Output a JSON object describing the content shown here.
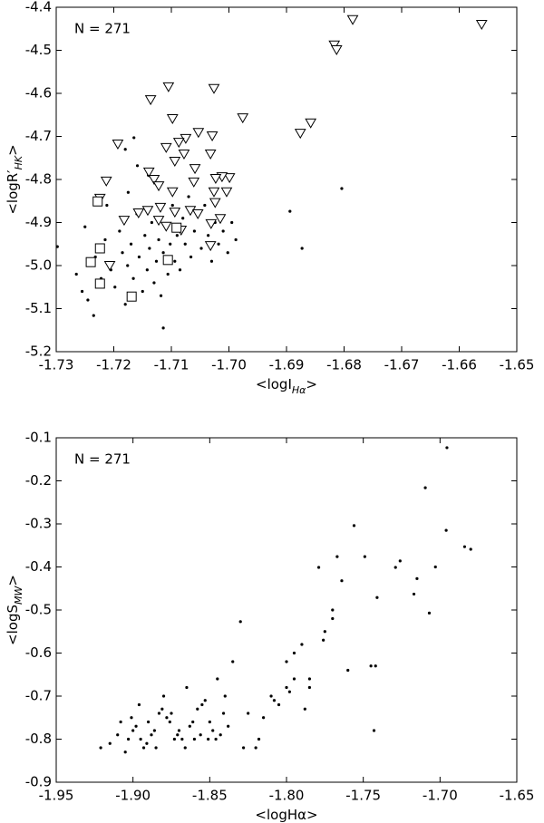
{
  "chart_data": [
    {
      "type": "scatter",
      "annotation": "N = 271",
      "xlabel": {
        "main": "<logI",
        "sub": "Hα",
        "end": ">"
      },
      "ylabel": {
        "main": "<logR′",
        "sub": "HK",
        "end": ">"
      },
      "xlim": [
        -1.73,
        -1.65
      ],
      "ylim": [
        -5.2,
        -4.4
      ],
      "xticks": [
        -1.73,
        -1.72,
        -1.71,
        {
          "value": -1.7,
          "label": "-1.70"
        },
        -1.69,
        -1.68,
        -1.67,
        -1.66,
        -1.65
      ],
      "yticks": [
        -5.2,
        -5.1,
        {
          "value": -5.0,
          "label": "-5.0"
        },
        -4.9,
        -4.8,
        -4.7,
        -4.6,
        -4.5,
        -4.4
      ],
      "series": [
        {
          "marker": "dot",
          "color": "#000000",
          "x": [
            -1.7298,
            -1.7235,
            -1.7114,
            -1.6804,
            -1.6894,
            -1.6873,
            -1.7165,
            -1.7159,
            -1.7265,
            -1.7255,
            -1.7245,
            -1.7232,
            -1.7222,
            -1.7215,
            -1.7205,
            -1.7198,
            -1.719,
            -1.7185,
            -1.718,
            -1.7176,
            -1.717,
            -1.7166,
            -1.716,
            -1.7156,
            -1.715,
            -1.7146,
            -1.7142,
            -1.7138,
            -1.7134,
            -1.713,
            -1.7126,
            -1.7122,
            -1.7118,
            -1.7114,
            -1.711,
            -1.7106,
            -1.7102,
            -1.7098,
            -1.7094,
            -1.709,
            -1.7085,
            -1.708,
            -1.7076,
            -1.707,
            -1.7066,
            -1.706,
            -1.7054,
            -1.7048,
            -1.7042,
            -1.7036,
            -1.703,
            -1.7024,
            -1.7018,
            -1.701,
            -1.7002,
            -1.6995,
            -1.6988,
            -1.7175,
            -1.714,
            -1.712,
            -1.718,
            -1.7212,
            -1.725
          ],
          "values": [
            -4.956,
            -5.116,
            -5.145,
            -4.821,
            -4.874,
            -4.96,
            -4.703,
            -4.768,
            -5.02,
            -5.06,
            -5.08,
            -4.98,
            -5.03,
            -4.94,
            -5.01,
            -5.05,
            -4.92,
            -4.97,
            -5.09,
            -5.0,
            -4.95,
            -5.03,
            -4.88,
            -4.98,
            -5.06,
            -4.93,
            -5.01,
            -4.96,
            -4.9,
            -5.04,
            -4.99,
            -4.94,
            -5.07,
            -4.97,
            -4.91,
            -5.02,
            -4.95,
            -4.86,
            -4.99,
            -4.93,
            -5.01,
            -4.89,
            -4.95,
            -4.84,
            -4.98,
            -4.92,
            -4.88,
            -4.96,
            -4.86,
            -4.93,
            -4.99,
            -4.9,
            -4.95,
            -4.92,
            -4.97,
            -4.9,
            -4.94,
            -4.83,
            -4.79,
            -4.81,
            -4.73,
            -4.86,
            -4.91
          ]
        },
        {
          "marker": "triangle",
          "color": "#000000",
          "x": [
            -1.6785,
            -1.6561,
            -1.6817,
            -1.6813,
            -1.7026,
            -1.7105,
            -1.7136,
            -1.6976,
            -1.6858,
            -1.6876,
            -1.7098,
            -1.7193,
            -1.7053,
            -1.7075,
            -1.7087,
            -1.7029,
            -1.7109,
            -1.7032,
            -1.7078,
            -1.7094,
            -1.7139,
            -1.713,
            -1.7059,
            -1.6999,
            -1.7012,
            -1.7023,
            -1.7213,
            -1.7122,
            -1.7061,
            -1.7098,
            -1.7004,
            -1.7026,
            -1.7224,
            -1.7024,
            -1.7157,
            -1.7141,
            -1.7119,
            -1.7094,
            -1.7067,
            -1.7054,
            -1.7182,
            -1.7122,
            -1.7015,
            -1.7031,
            -1.7083,
            -1.7032,
            -1.7207,
            -1.7109
          ],
          "values": [
            -4.429,
            -4.44,
            -4.488,
            -4.499,
            -4.589,
            -4.585,
            -4.615,
            -4.657,
            -4.669,
            -4.693,
            -4.659,
            -4.718,
            -4.691,
            -4.705,
            -4.714,
            -4.699,
            -4.726,
            -4.741,
            -4.741,
            -4.758,
            -4.783,
            -4.8,
            -4.775,
            -4.796,
            -4.794,
            -4.798,
            -4.804,
            -4.815,
            -4.806,
            -4.829,
            -4.829,
            -4.829,
            -4.844,
            -4.854,
            -4.878,
            -4.872,
            -4.865,
            -4.876,
            -4.872,
            -4.88,
            -4.895,
            -4.895,
            -4.891,
            -4.903,
            -4.918,
            -4.954,
            -5.0,
            -4.909
          ]
        },
        {
          "marker": "square",
          "color": "#000000",
          "x": [
            -1.7228,
            -1.7224,
            -1.724,
            -1.7224,
            -1.7169,
            -1.7106,
            -1.7091
          ],
          "values": [
            -4.851,
            -4.96,
            -4.992,
            -5.042,
            -5.072,
            -4.987,
            -4.912
          ]
        }
      ]
    },
    {
      "type": "scatter",
      "annotation": "N = 271",
      "xlabel": {
        "main": "<logHα",
        "sub": "",
        "end": ">"
      },
      "ylabel": {
        "main": "<logS",
        "sub": "MW",
        "end": ">"
      },
      "xlim": [
        -1.95,
        -1.65
      ],
      "ylim": [
        -0.9,
        -0.1
      ],
      "xticks": [
        -1.95,
        {
          "value": -1.9,
          "label": "-1.90"
        },
        -1.85,
        {
          "value": -1.8,
          "label": "-1.80"
        },
        -1.75,
        {
          "value": -1.7,
          "label": "-1.70"
        },
        -1.65
      ],
      "yticks": [
        -0.9,
        -0.8,
        -0.7,
        -0.6,
        -0.5,
        -0.4,
        -0.3,
        -0.2,
        -0.1
      ],
      "series": [
        {
          "marker": "dot",
          "color": "#000000",
          "x": [
            -1.6955,
            -1.7096,
            -1.696,
            -1.684,
            -1.68,
            -1.756,
            -1.779,
            -1.767,
            -1.749,
            -1.726,
            -1.729,
            -1.715,
            -1.703,
            -1.717,
            -1.707,
            -1.741,
            -1.764,
            -1.83,
            -1.77,
            -1.775,
            -1.79,
            -1.795,
            -1.8,
            -1.785,
            -1.76,
            -1.745,
            -1.743,
            -1.77,
            -1.776,
            -1.81,
            -1.815,
            -1.82,
            -1.805,
            -1.8,
            -1.825,
            -1.835,
            -1.84,
            -1.845,
            -1.85,
            -1.855,
            -1.86,
            -1.865,
            -1.87,
            -1.875,
            -1.88,
            -1.885,
            -1.89,
            -1.895,
            -1.9,
            -1.905,
            -1.91,
            -1.915,
            -1.921,
            -1.908,
            -1.898,
            -1.888,
            -1.878,
            -1.868,
            -1.858,
            -1.848,
            -1.893,
            -1.883,
            -1.873,
            -1.863,
            -1.853,
            -1.843,
            -1.903,
            -1.896,
            -1.886,
            -1.876,
            -1.866,
            -1.856,
            -1.846,
            -1.838,
            -1.901,
            -1.891,
            -1.881,
            -1.871,
            -1.861,
            -1.851,
            -1.841,
            -1.828,
            -1.818,
            -1.808,
            -1.798,
            -1.788,
            -1.742,
            -1.785,
            -1.795
          ],
          "values": [
            -0.123,
            -0.216,
            -0.315,
            -0.353,
            -0.359,
            -0.304,
            -0.401,
            -0.376,
            -0.376,
            -0.386,
            -0.401,
            -0.427,
            -0.4,
            -0.463,
            -0.507,
            -0.471,
            -0.432,
            -0.527,
            -0.5,
            -0.55,
            -0.58,
            -0.6,
            -0.62,
            -0.66,
            -0.64,
            -0.63,
            -0.78,
            -0.52,
            -0.57,
            -0.7,
            -0.75,
            -0.82,
            -0.72,
            -0.68,
            -0.74,
            -0.62,
            -0.7,
            -0.66,
            -0.76,
            -0.72,
            -0.8,
            -0.68,
            -0.78,
            -0.74,
            -0.7,
            -0.82,
            -0.76,
            -0.8,
            -0.78,
            -0.83,
            -0.79,
            -0.81,
            -0.82,
            -0.76,
            -0.77,
            -0.79,
            -0.75,
            -0.8,
            -0.73,
            -0.78,
            -0.82,
            -0.74,
            -0.8,
            -0.77,
            -0.71,
            -0.79,
            -0.8,
            -0.72,
            -0.78,
            -0.76,
            -0.82,
            -0.79,
            -0.8,
            -0.77,
            -0.75,
            -0.81,
            -0.73,
            -0.79,
            -0.76,
            -0.8,
            -0.74,
            -0.82,
            -0.8,
            -0.71,
            -0.69,
            -0.73,
            -0.63,
            -0.68,
            -0.66
          ]
        }
      ]
    }
  ]
}
